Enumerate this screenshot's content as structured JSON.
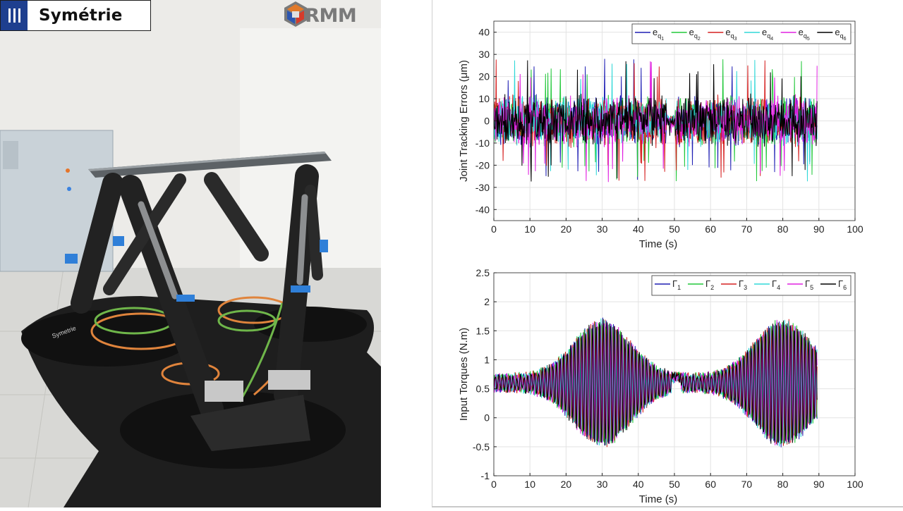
{
  "photo": {
    "brand_left": "Symétrie",
    "brand_right": "LIRMM",
    "label_on_base": "Symetrie"
  },
  "chart_data": [
    {
      "type": "line",
      "title": "",
      "xlabel": "Time (s)",
      "ylabel": "Joint Tracking Errors (μm)",
      "xlim": [
        0,
        100
      ],
      "ylim": [
        -45,
        45
      ],
      "xticks": [
        0,
        10,
        20,
        30,
        40,
        50,
        60,
        70,
        80,
        90,
        100
      ],
      "yticks": [
        -40,
        -30,
        -20,
        -10,
        0,
        10,
        20,
        30,
        40
      ],
      "grid": true,
      "legend_position": "top-right",
      "data_end": 89.5,
      "series": [
        {
          "name": "e",
          "sub": "q",
          "subsub": "1",
          "color": "#1f1fb4",
          "amplitude": 9,
          "peak": 27
        },
        {
          "name": "e",
          "sub": "q",
          "subsub": "2",
          "color": "#22c83a",
          "amplitude": 9,
          "peak": 31
        },
        {
          "name": "e",
          "sub": "q",
          "subsub": "3",
          "color": "#d62020",
          "amplitude": 9,
          "peak": -27
        },
        {
          "name": "e",
          "sub": "q",
          "subsub": "4",
          "color": "#30d8d8",
          "amplitude": 9,
          "peak": 27
        },
        {
          "name": "e",
          "sub": "q",
          "subsub": "5",
          "color": "#e020e0",
          "amplitude": 9,
          "peak": 26
        },
        {
          "name": "e",
          "sub": "q",
          "subsub": "6",
          "color": "#000000",
          "amplitude": 9,
          "peak": 31
        }
      ]
    },
    {
      "type": "line",
      "title": "",
      "xlabel": "Time (s)",
      "ylabel": "Input Torques (N.m)",
      "xlim": [
        0,
        100
      ],
      "ylim": [
        -1,
        2.5
      ],
      "xticks": [
        0,
        10,
        20,
        30,
        40,
        50,
        60,
        70,
        80,
        90,
        100
      ],
      "yticks": [
        -1,
        -0.5,
        0,
        0.5,
        1,
        1.5,
        2,
        2.5
      ],
      "grid": true,
      "legend_position": "top-right",
      "data_end": 89.5,
      "envelope_peaks_s": [
        30,
        80
      ],
      "max_value": 1.75,
      "min_value": -0.6,
      "series": [
        {
          "name": "Γ",
          "sub": "1",
          "color": "#1f1fb4"
        },
        {
          "name": "Γ",
          "sub": "2",
          "color": "#22c83a"
        },
        {
          "name": "Γ",
          "sub": "3",
          "color": "#d62020"
        },
        {
          "name": "Γ",
          "sub": "4",
          "color": "#30d8d8"
        },
        {
          "name": "Γ",
          "sub": "5",
          "color": "#e020e0"
        },
        {
          "name": "Γ",
          "sub": "6",
          "color": "#000000"
        }
      ]
    }
  ]
}
